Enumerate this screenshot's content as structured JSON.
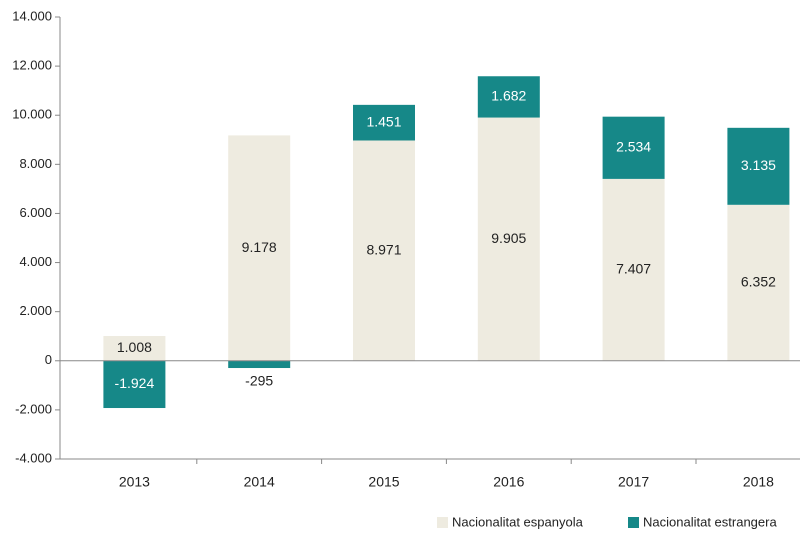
{
  "chart_data": {
    "type": "bar",
    "stacked": true,
    "categories": [
      "2013",
      "2014",
      "2015",
      "2016",
      "2017",
      "2018"
    ],
    "series": [
      {
        "name": "Nacionalitat espanyola",
        "color": "#eeebe0",
        "values": [
          1008,
          9178,
          8971,
          9905,
          7407,
          6352
        ],
        "value_labels": [
          "1.008",
          "9.178",
          "8.971",
          "9.905",
          "7.407",
          "6.352"
        ]
      },
      {
        "name": "Nacionalitat estrangera",
        "color": "#168888",
        "values": [
          -1924,
          -295,
          1451,
          1682,
          2534,
          3135
        ],
        "value_labels": [
          "-1.924",
          "-295",
          "1.451",
          "1.682",
          "2.534",
          "3.135"
        ]
      }
    ],
    "ylim": [
      -4000,
      14000
    ],
    "yticks": [
      {
        "value": -4000,
        "label": "-4.000"
      },
      {
        "value": -2000,
        "label": "-2.000"
      },
      0,
      {
        "value": 2000,
        "label": "2.000"
      },
      {
        "value": 4000,
        "label": "4.000"
      },
      {
        "value": 6000,
        "label": "6.000"
      },
      {
        "value": 8000,
        "label": "8.000"
      },
      {
        "value": 10000,
        "label": "10.000"
      },
      {
        "value": 12000,
        "label": "12.000"
      },
      {
        "value": 14000,
        "label": "14.000"
      }
    ],
    "grid": false,
    "legend": "lower right"
  }
}
